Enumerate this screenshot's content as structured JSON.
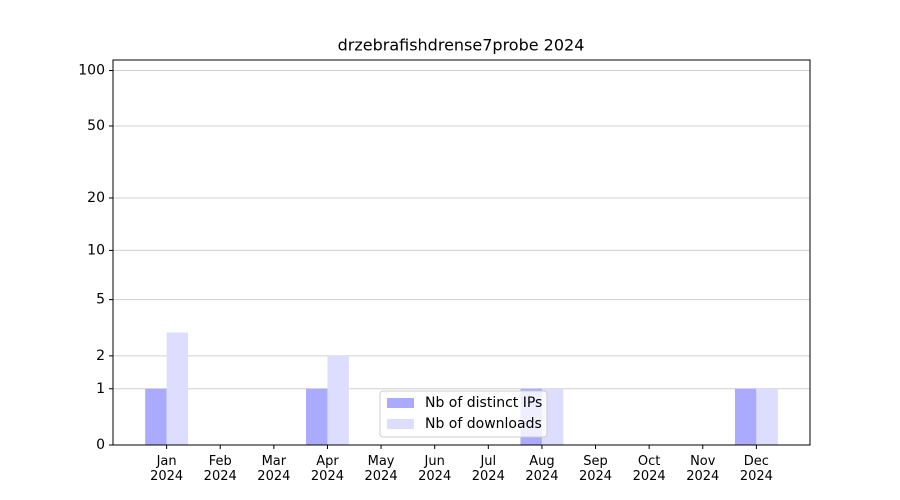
{
  "chart_data": {
    "type": "bar",
    "title": "drzebrafishdrense7probe 2024",
    "categories": [
      "Jan\n2024",
      "Feb\n2024",
      "Mar\n2024",
      "Apr\n2024",
      "May\n2024",
      "Jun\n2024",
      "Jul\n2024",
      "Aug\n2024",
      "Sep\n2024",
      "Oct\n2024",
      "Nov\n2024",
      "Dec\n2024"
    ],
    "series": [
      {
        "name": "Nb of distinct IPs",
        "color": "#aaaaff",
        "values": [
          1,
          0,
          0,
          1,
          0,
          0,
          0,
          1,
          0,
          0,
          0,
          1
        ]
      },
      {
        "name": "Nb of downloads",
        "color": "#ddddff",
        "values": [
          3,
          0,
          0,
          2,
          0,
          0,
          0,
          1,
          0,
          0,
          0,
          1
        ]
      }
    ],
    "yscale": "log1p",
    "ylim": [
      0,
      114
    ],
    "yticks": [
      0,
      1,
      2,
      5,
      10,
      20,
      50,
      100
    ],
    "grid": true,
    "legend": "lower center"
  }
}
